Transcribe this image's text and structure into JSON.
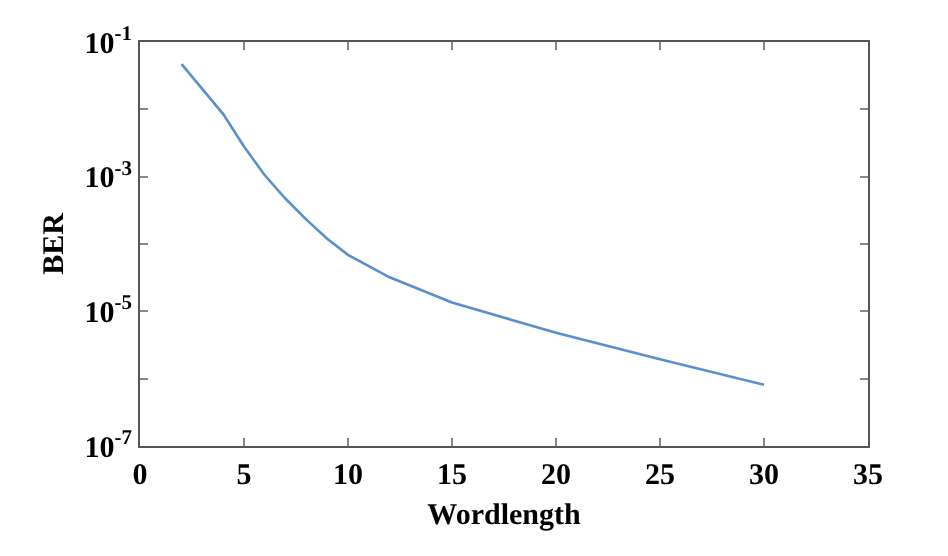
{
  "chart_data": {
    "type": "line",
    "xlabel": "Wordlength",
    "ylabel": "BER",
    "log": "y",
    "marker": "none",
    "line_style": "solid",
    "x": [
      2,
      3,
      4,
      5,
      6,
      7,
      8,
      9,
      10,
      12,
      15,
      20,
      25,
      30
    ],
    "series": [
      {
        "color": "#5b8fc9",
        "values": [
          0.047,
          0.02,
          0.0085,
          0.0028,
          0.00105,
          0.00047,
          0.00023,
          0.00012,
          6.9e-05,
          3.2e-05,
          1.35e-05,
          4.8e-06,
          1.95e-06,
          8.1e-07
        ]
      }
    ],
    "xlim": [
      0,
      35
    ],
    "xticks": [
      0,
      5,
      10,
      15,
      20,
      25,
      30,
      35
    ],
    "ylim": [
      1e-07,
      0.1
    ],
    "yticks": [
      {
        "value": 0.1,
        "label": "10$^{-1}$"
      },
      {
        "value": 0.01,
        "label": null
      },
      {
        "value": 0.001,
        "label": "10$^{-3}$"
      },
      {
        "value": 0.0001,
        "label": null
      },
      {
        "value": 1e-05,
        "label": "10$^{-5}$"
      },
      {
        "value": 1e-06,
        "label": null
      },
      {
        "value": 1e-07,
        "label": "10$^{-7}$"
      }
    ]
  }
}
